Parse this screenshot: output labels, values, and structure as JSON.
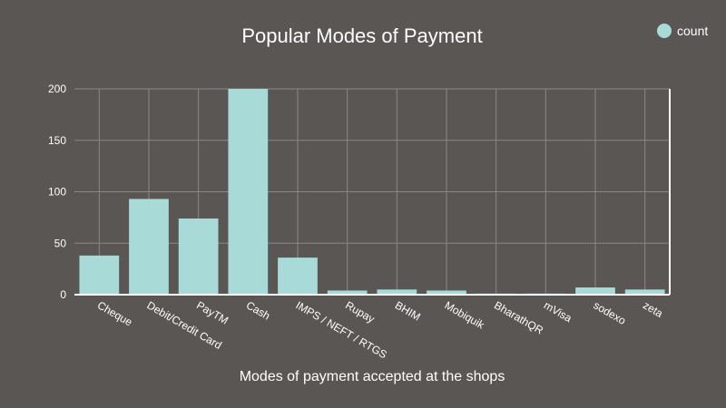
{
  "chart_data": {
    "type": "bar",
    "title": "Popular Modes of Payment",
    "xlabel": "Modes of payment accepted at the shops",
    "ylabel": "",
    "categories": [
      "Cheque",
      "Debit/Credit Card",
      "PayTM",
      "Cash",
      "IMPS / NEFT / RTGS",
      "Rupay",
      "BHIM",
      "Mobiquik",
      "BharathQR",
      "mVisa",
      "sodexo",
      "zeta"
    ],
    "series": [
      {
        "name": "count",
        "values": [
          38,
          93,
          74,
          200,
          36,
          4,
          5,
          4,
          1,
          1,
          7,
          5
        ]
      }
    ],
    "ylim": [
      0,
      200
    ],
    "yticks": [
      "0",
      "50",
      "100",
      "150",
      "200"
    ],
    "grid": true,
    "legend_position": "top-right",
    "colors": {
      "bar": "#a8dbd7",
      "background": "#595654",
      "grid": "#8a8886",
      "axis": "#ffffff",
      "text": "#ffffff"
    }
  }
}
